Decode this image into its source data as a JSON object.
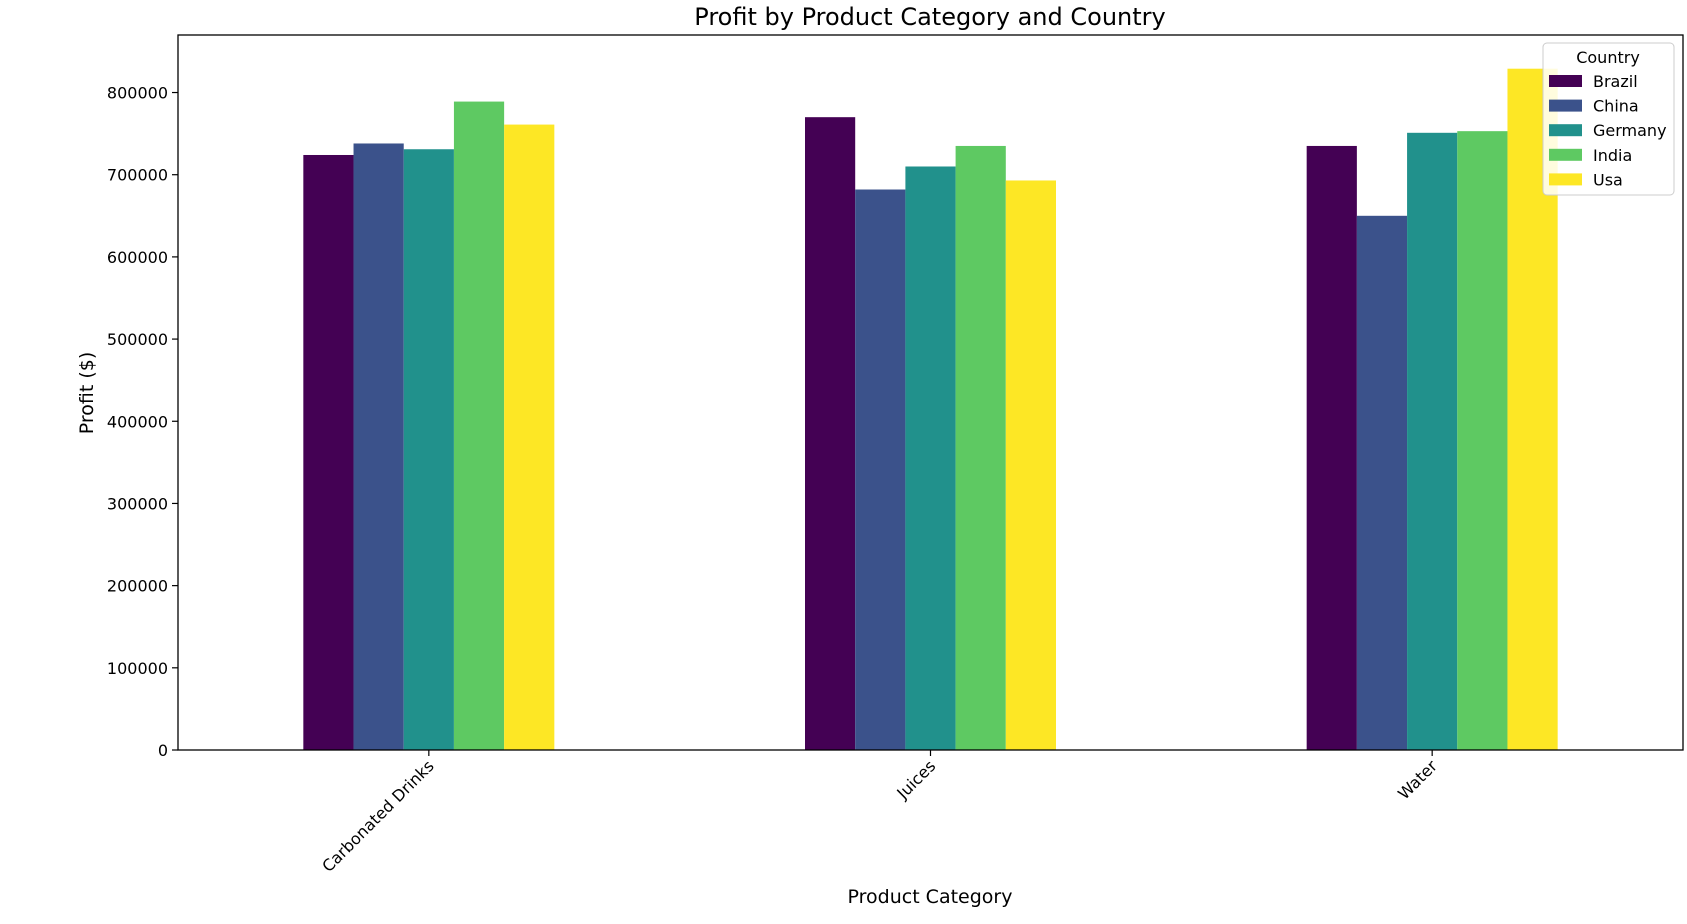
{
  "chart_data": {
    "type": "bar",
    "title": "Profit by Product Category and Country",
    "xlabel": "Product Category",
    "ylabel": "Profit ($)",
    "categories": [
      "Carbonated Drinks",
      "Juices",
      "Water"
    ],
    "ylim": [
      0,
      870000
    ],
    "yticks": [
      0,
      100000,
      200000,
      300000,
      400000,
      500000,
      600000,
      700000,
      800000
    ],
    "ytick_labels": [
      "0",
      "100000",
      "200000",
      "300000",
      "400000",
      "500000",
      "600000",
      "700000",
      "800000"
    ],
    "grid": false,
    "legend": {
      "title": "Country",
      "placement": "top-right"
    },
    "series": [
      {
        "name": "Brazil",
        "color": "#440154",
        "values": [
          724000,
          770000,
          735000
        ]
      },
      {
        "name": "China",
        "color": "#3b528b",
        "values": [
          738000,
          682000,
          650000
        ]
      },
      {
        "name": "Germany",
        "color": "#21918c",
        "values": [
          731000,
          710000,
          751000
        ]
      },
      {
        "name": "India",
        "color": "#5ec962",
        "values": [
          789000,
          735000,
          753000
        ]
      },
      {
        "name": "Usa",
        "color": "#fde725",
        "values": [
          761000,
          693000,
          829000
        ]
      }
    ]
  }
}
